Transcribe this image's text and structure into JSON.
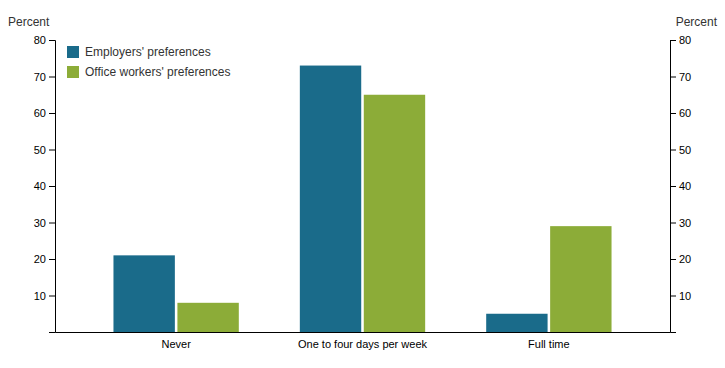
{
  "chart_data": {
    "type": "bar",
    "categories": [
      "Never",
      "One to four days per week",
      "Full time"
    ],
    "series": [
      {
        "name": "Employers' preferences",
        "color": "#1a6b8a",
        "values": [
          21,
          73,
          5
        ]
      },
      {
        "name": "Office workers' preferences",
        "color": "#8cac38",
        "values": [
          8,
          65,
          29
        ]
      }
    ],
    "ylabel": "Percent",
    "y2label": "Percent",
    "ylim": [
      0,
      80
    ],
    "yticks": [
      10,
      20,
      30,
      40,
      50,
      60,
      70,
      80
    ],
    "y2lim": [
      0,
      80
    ],
    "y2ticks": [
      10,
      20,
      30,
      40,
      50,
      60,
      70,
      80
    ],
    "legend": "upper left",
    "grid": false
  }
}
